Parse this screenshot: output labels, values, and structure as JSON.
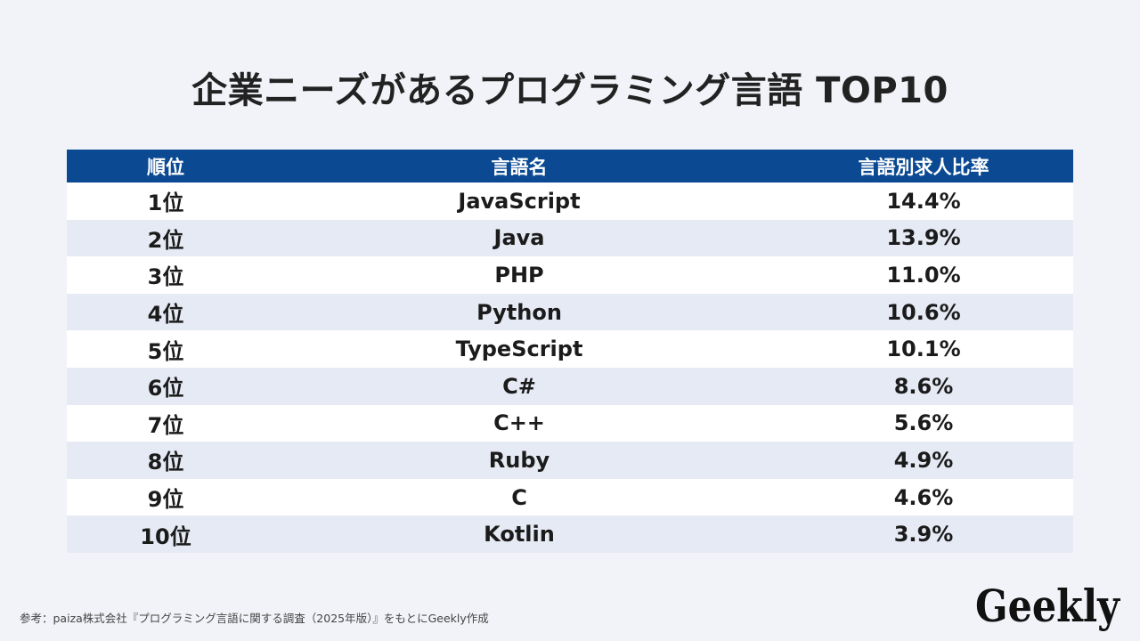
{
  "title": "企業ニーズがあるプログラミング言語 TOP10",
  "table": {
    "headers": [
      "順位",
      "言語名",
      "言語別求人比率"
    ],
    "rows": [
      {
        "rank": "1位",
        "language": "JavaScript",
        "ratio": "14.4%"
      },
      {
        "rank": "2位",
        "language": "Java",
        "ratio": "13.9%"
      },
      {
        "rank": "3位",
        "language": "PHP",
        "ratio": "11.0%"
      },
      {
        "rank": "4位",
        "language": "Python",
        "ratio": "10.6%"
      },
      {
        "rank": "5位",
        "language": "TypeScript",
        "ratio": "10.1%"
      },
      {
        "rank": "6位",
        "language": "C#",
        "ratio": "8.6%"
      },
      {
        "rank": "7位",
        "language": "C++",
        "ratio": "5.6%"
      },
      {
        "rank": "8位",
        "language": "Ruby",
        "ratio": "4.9%"
      },
      {
        "rank": "9位",
        "language": "C",
        "ratio": "4.6%"
      },
      {
        "rank": "10位",
        "language": "Kotlin",
        "ratio": "3.9%"
      }
    ]
  },
  "source": "参考：paiza株式会社『プログラミング言語に関する調査（2025年版）』をもとにGeekly作成",
  "logo": {
    "text": "Geekly",
    "color": "#111111"
  },
  "colors": {
    "header_bg": "#0b4a93",
    "row_alt_bg": "#e6eaf4",
    "page_bg": "#f1f3f8"
  }
}
